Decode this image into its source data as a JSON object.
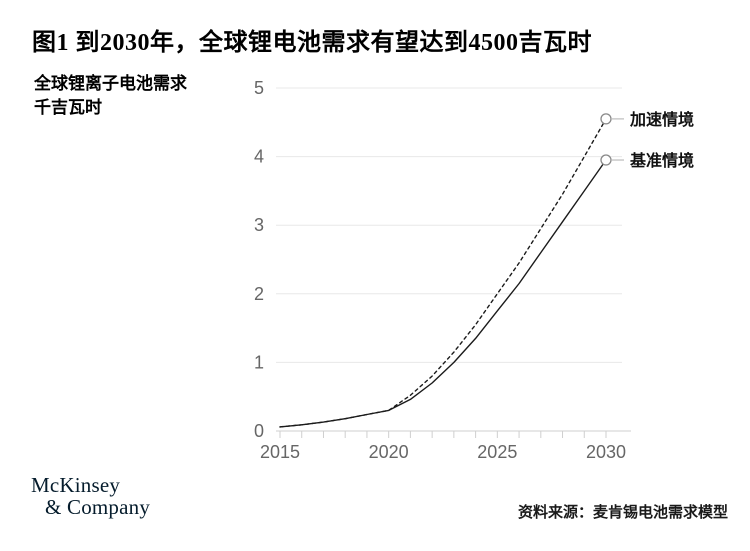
{
  "header": {
    "title": "图1 到2030年，全球锂电池需求有望达到4500吉瓦时"
  },
  "chart_data": {
    "type": "line",
    "title": "到2030年，全球锂电池需求有望达到4500吉瓦时",
    "ylabel_line1": "全球锂离子电池需求",
    "ylabel_line2": "千吉瓦时",
    "x": [
      2015,
      2016,
      2017,
      2018,
      2019,
      2020,
      2021,
      2022,
      2023,
      2024,
      2025,
      2026,
      2027,
      2028,
      2029,
      2030
    ],
    "x_tick_labels": [
      "2015",
      "2020",
      "2025",
      "2030"
    ],
    "x_tick_values": [
      2015,
      2020,
      2025,
      2030
    ],
    "y_ticks": [
      0,
      1,
      2,
      3,
      4,
      5
    ],
    "xlim": [
      2015,
      2030
    ],
    "ylim": [
      0,
      5
    ],
    "grid": "horizontal",
    "legend_position": "right-of-line-ends",
    "series": [
      {
        "name": "加速情境",
        "style": "dashed",
        "values": [
          0.06,
          0.09,
          0.13,
          0.18,
          0.24,
          0.3,
          0.52,
          0.8,
          1.15,
          1.55,
          2.0,
          2.45,
          2.95,
          3.45,
          4.0,
          4.55
        ]
      },
      {
        "name": "基准情境",
        "style": "solid",
        "values": [
          0.06,
          0.09,
          0.13,
          0.18,
          0.24,
          0.3,
          0.46,
          0.7,
          1.0,
          1.35,
          1.75,
          2.15,
          2.6,
          3.05,
          3.5,
          3.95
        ]
      }
    ],
    "colors": {
      "line": "#1b1b1b",
      "grid": "#e8e8e8",
      "axis": "#cfcfcf",
      "tick_label": "#666666",
      "marker_stroke": "#8a8a8a",
      "connector": "#c9c9c9",
      "legend_text": "#111111"
    }
  },
  "footer": {
    "logo_line1": "McKinsey",
    "logo_line2": "& Company",
    "source": "资料来源：麦肯锡电池需求模型"
  }
}
